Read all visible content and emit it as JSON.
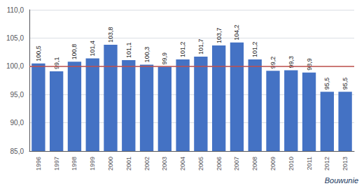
{
  "chart_data": {
    "type": "bar",
    "categories": [
      "1996",
      "1997",
      "1998",
      "1999",
      "2000",
      "2001",
      "2002",
      "2003",
      "2004",
      "2005",
      "2006",
      "2007",
      "2008",
      "2009",
      "2010",
      "2011",
      "2012",
      "2013"
    ],
    "values": [
      100.5,
      99.1,
      100.8,
      101.4,
      103.8,
      101.1,
      100.3,
      99.9,
      101.2,
      101.7,
      103.7,
      104.2,
      101.2,
      99.2,
      99.3,
      98.9,
      95.5,
      95.5
    ],
    "value_labels": [
      "100,5",
      "99,1",
      "100,8",
      "101,4",
      "103,8",
      "101,1",
      "100,3",
      "99,9",
      "101,2",
      "101,7",
      "103,7",
      "104,2",
      "101,2",
      "99,2",
      "99,3",
      "98,9",
      "95,5",
      "95,5"
    ],
    "data_labels": true,
    "color": "#4472C4",
    "ylim": [
      85.0,
      110.0
    ],
    "yticks": [
      {
        "value": 85.0,
        "label": "85,0"
      },
      {
        "value": 90.0,
        "label": "90,0"
      },
      {
        "value": 95.0,
        "label": "95,0"
      },
      {
        "value": 100.0,
        "label": "100,0"
      },
      {
        "value": 105.0,
        "label": "105,0"
      },
      {
        "value": 110.0,
        "label": "110,0"
      }
    ],
    "grid": true,
    "reference_line": {
      "value": 100.0,
      "color": "#C0504D"
    },
    "annotations": [
      {
        "text": "Bouwunie",
        "color": "#17375E"
      }
    ]
  }
}
